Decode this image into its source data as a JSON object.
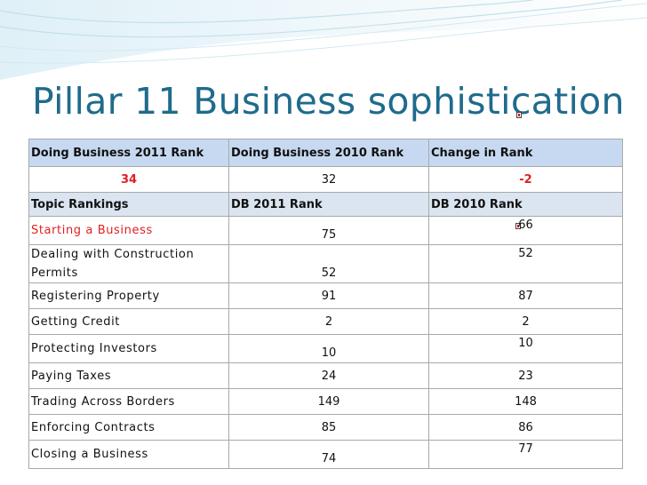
{
  "title": "Pillar 11 Business sophistication",
  "header": {
    "col1": "Doing Business 2011 Rank",
    "col2": "Doing Business 2010 Rank",
    "col3": "Change in Rank"
  },
  "summary": {
    "rank_2011": "34",
    "rank_2010": "32",
    "change": "-2"
  },
  "subheader": {
    "col1": "Topic Rankings",
    "col2": "DB 2011 Rank",
    "col3": "DB 2010 Rank"
  },
  "rows": [
    {
      "topic": "Starting a Business",
      "db2011": "75",
      "db2010": "66"
    },
    {
      "topic": "Dealing with Construction Permits",
      "db2011": "52",
      "db2010": "52"
    },
    {
      "topic": "Registering Property",
      "db2011": "91",
      "db2010": "87"
    },
    {
      "topic": "Getting Credit",
      "db2011": "2",
      "db2010": "2"
    },
    {
      "topic": "Protecting Investors",
      "db2011": "10",
      "db2010": "10"
    },
    {
      "topic": "Paying Taxes",
      "db2011": "24",
      "db2010": "23"
    },
    {
      "topic": "Trading Across Borders",
      "db2011": "149",
      "db2010": "148"
    },
    {
      "topic": "Enforcing Contracts",
      "db2011": "85",
      "db2010": "86"
    },
    {
      "topic": "Closing a Business",
      "db2011": "74",
      "db2010": "77"
    }
  ],
  "colors": {
    "title": "#1f6b8c",
    "accent_red": "#e02020",
    "header_fill": "#c6d9f1"
  }
}
